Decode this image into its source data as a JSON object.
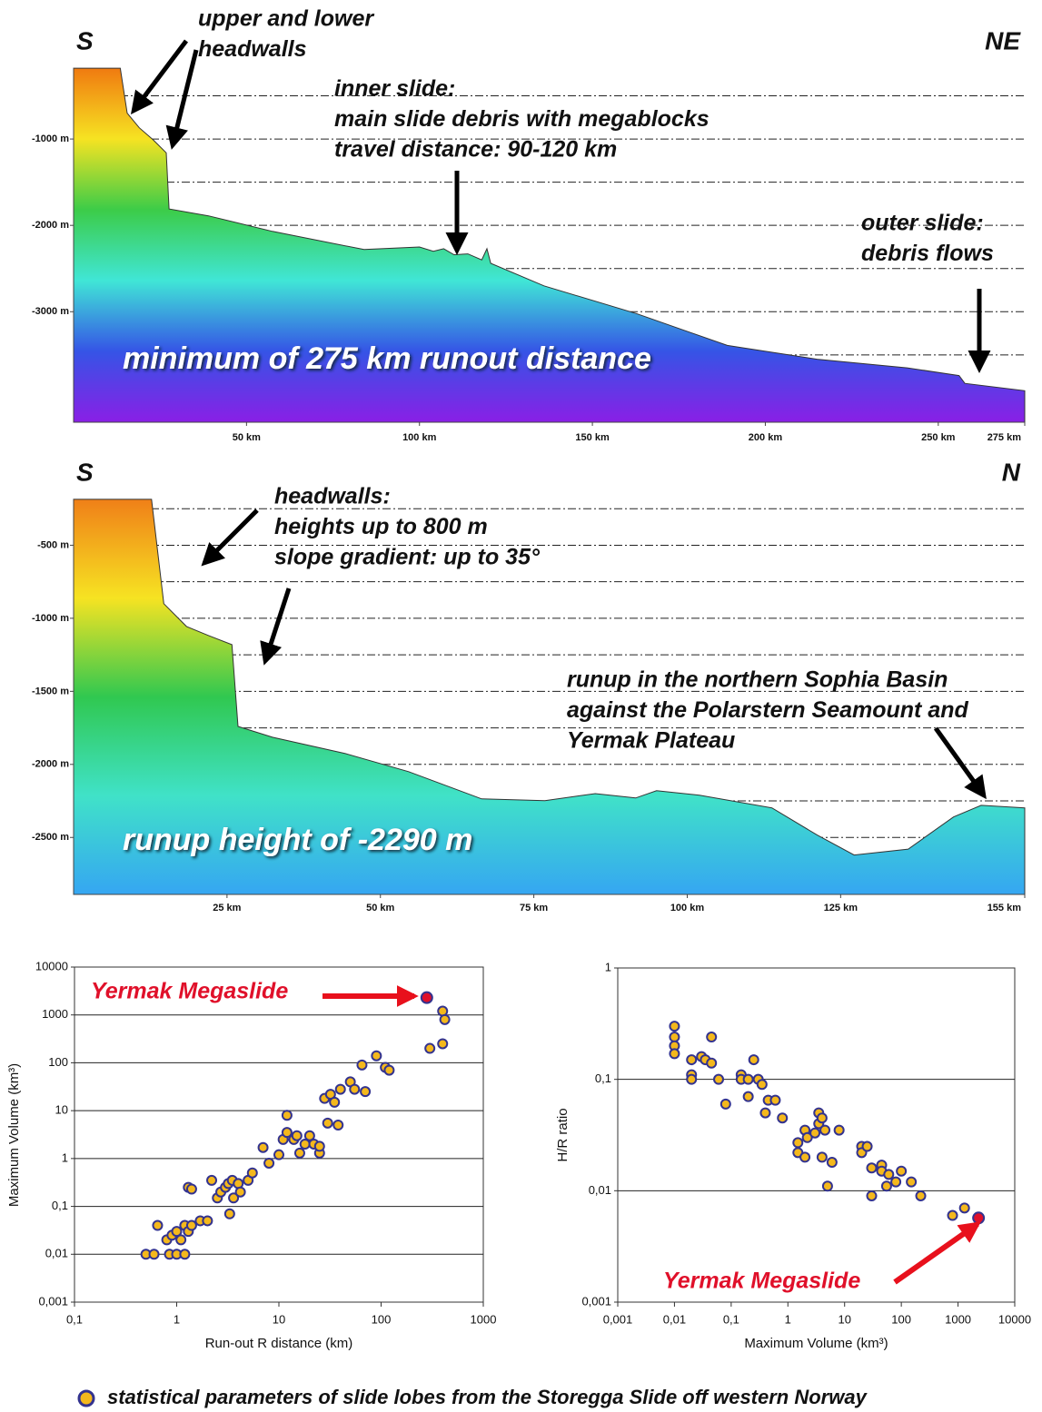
{
  "chart_data": [
    {
      "type": "area",
      "left_label": "S",
      "right_label": "NE",
      "x": [
        0,
        13.5,
        15.5,
        19,
        23,
        26.8,
        27.6,
        39,
        57.5,
        84,
        100,
        104,
        107,
        110,
        114,
        118,
        119.5,
        120.6,
        136,
        162.6,
        189,
        215,
        241,
        256,
        257.7,
        275
      ],
      "values": [
        -180,
        -180,
        -700,
        -870,
        -1010,
        -1160,
        -1810,
        -1890,
        -2070,
        -2280,
        -2250,
        -2300,
        -2270,
        -2340,
        -2330,
        -2400,
        -2270,
        -2440,
        -2700,
        -3020,
        -3390,
        -3550,
        -3650,
        -3740,
        -3830,
        -3915
      ],
      "xlim": [
        0,
        275
      ],
      "ylim": [
        -4280,
        0
      ],
      "xticks": [
        {
          "value": 50,
          "label": "50 km"
        },
        {
          "value": 100,
          "label": "100 km"
        },
        {
          "value": 150,
          "label": "150 km"
        },
        {
          "value": 200,
          "label": "200 km"
        },
        {
          "value": 250,
          "label": "250 km"
        },
        {
          "value": 275,
          "label": "275 km"
        }
      ],
      "yticks": [
        {
          "value": -1000,
          "label": "-1000 m"
        },
        {
          "value": -2000,
          "label": "-2000 m"
        },
        {
          "value": -3000,
          "label": "-3000 m"
        }
      ],
      "yminor": [
        -500,
        -1500,
        -2500,
        -3500
      ],
      "grid": true,
      "gradient": [
        "#f07a10",
        "#f6e322",
        "#3ccc48",
        "#40e6d6",
        "#3554e6",
        "#8a1fe6"
      ],
      "annotations": [
        {
          "lines": [
            "upper and lower",
            "headwalls"
          ]
        },
        {
          "lines": [
            "inner slide:",
            "main slide debris with megablocks",
            "travel distance: 90-120 km"
          ]
        },
        {
          "lines": [
            "outer slide:",
            "debris flows"
          ]
        },
        {
          "lines": [
            "minimum of 275 km runout distance"
          ]
        }
      ]
    },
    {
      "type": "area",
      "left_label": "S",
      "right_label": "N",
      "x": [
        0,
        12.7,
        14.7,
        18.4,
        22,
        25.8,
        26.8,
        32.4,
        44.3,
        54.6,
        66.5,
        76.8,
        85,
        91.6,
        95,
        102,
        113.8,
        121.2,
        127.2,
        136,
        143.4,
        147.9,
        155
      ],
      "values": [
        -186,
        -186,
        -900,
        -1056,
        -1118,
        -1180,
        -1740,
        -1814,
        -1926,
        -2050,
        -2236,
        -2248,
        -2200,
        -2230,
        -2180,
        -2211,
        -2298,
        -2484,
        -2620,
        -2580,
        -2360,
        -2280,
        -2298
      ],
      "xlim": [
        0,
        155
      ],
      "ylim": [
        -2890,
        0
      ],
      "xticks": [
        {
          "value": 25,
          "label": "25 km"
        },
        {
          "value": 50,
          "label": "50 km"
        },
        {
          "value": 75,
          "label": "75 km"
        },
        {
          "value": 100,
          "label": "100 km"
        },
        {
          "value": 125,
          "label": "125 km"
        },
        {
          "value": 155,
          "label": "155 km"
        }
      ],
      "yticks": [
        {
          "value": -500,
          "label": "-500 m"
        },
        {
          "value": -1000,
          "label": "-1000 m"
        },
        {
          "value": -1500,
          "label": "-1500 m"
        },
        {
          "value": -2000,
          "label": "-2000 m"
        },
        {
          "value": -2500,
          "label": "-2500 m"
        }
      ],
      "yminor": [
        -250,
        -750,
        -1250,
        -1750,
        -2250
      ],
      "grid": true,
      "gradient": [
        "#f08018",
        "#f6e322",
        "#30c850",
        "#40e2c8",
        "#35a6f2"
      ],
      "annotations": [
        {
          "lines": [
            "headwalls:",
            "heights up to 800 m",
            "slope gradient: up to 35°"
          ]
        },
        {
          "lines": [
            "runup in the northern Sophia Basin",
            "against the Polarstern Seamount and",
            "Yermak Plateau"
          ]
        },
        {
          "lines": [
            "runup height of -2290 m"
          ]
        }
      ]
    },
    {
      "type": "scatter",
      "xlabel": "Run-out R distance (km)",
      "ylabel": "Maximum Volume (km³)",
      "xscale": "log",
      "yscale": "log",
      "xlim": [
        0.1,
        1000
      ],
      "ylim": [
        0.001,
        10000
      ],
      "grid": true,
      "xticks": [
        {
          "value": 0.1,
          "label": "0,1"
        },
        1,
        10,
        100,
        1000
      ],
      "yticks": [
        {
          "value": 0.001,
          "label": "0,001"
        },
        {
          "value": 0.01,
          "label": "0,01"
        },
        {
          "value": 0.1,
          "label": "0,1"
        },
        1,
        10,
        100,
        1000,
        10000
      ],
      "series": [
        {
          "name": "statistical parameters of slide lobes from the Storegga Slide off western Norway",
          "color": "#f4b81c",
          "edge": "#33338f",
          "x": [
            0.5,
            0.6,
            0.65,
            0.8,
            0.85,
            0.9,
            1,
            1,
            1.1,
            1.2,
            1.2,
            1.3,
            1.4,
            1.3,
            1.4,
            1.7,
            2,
            2.2,
            2.5,
            2.7,
            3,
            3.2,
            3.3,
            3.5,
            3.6,
            4,
            4.2,
            5,
            5.5,
            7,
            8,
            10,
            11,
            12,
            12,
            14,
            15,
            16,
            18,
            20,
            22,
            25,
            25,
            28,
            30,
            32,
            35,
            38,
            40,
            50,
            55,
            65,
            70,
            90,
            110,
            120,
            300,
            400,
            400,
            420
          ],
          "values": [
            0.01,
            0.01,
            0.04,
            0.02,
            0.01,
            0.025,
            0.01,
            0.03,
            0.02,
            0.01,
            0.04,
            0.03,
            0.04,
            0.25,
            0.23,
            0.05,
            0.05,
            0.35,
            0.15,
            0.2,
            0.25,
            0.3,
            0.07,
            0.35,
            0.15,
            0.3,
            0.2,
            0.35,
            0.5,
            1.7,
            0.8,
            1.2,
            2.5,
            8,
            3.5,
            2.5,
            3,
            1.3,
            2,
            3,
            2,
            1.3,
            1.8,
            18,
            5.5,
            22,
            15,
            5,
            28,
            40,
            28,
            90,
            25,
            140,
            80,
            70,
            200,
            250,
            1200,
            800
          ]
        },
        {
          "name": "Yermak Megaslide",
          "color": "#e0102a",
          "edge": "#33338f",
          "x": [
            280
          ],
          "values": [
            2300
          ]
        }
      ]
    },
    {
      "type": "scatter",
      "xlabel": "Maximum Volume (km³)",
      "ylabel": "H/R ratio",
      "xscale": "log",
      "yscale": "log",
      "xlim": [
        0.001,
        10000
      ],
      "ylim": [
        0.001,
        1
      ],
      "grid": true,
      "xticks": [
        {
          "value": 0.001,
          "label": "0,001"
        },
        {
          "value": 0.01,
          "label": "0,01"
        },
        {
          "value": 0.1,
          "label": "0,1"
        },
        1,
        10,
        100,
        1000,
        10000
      ],
      "yticks": [
        {
          "value": 0.001,
          "label": "0,001"
        },
        {
          "value": 0.01,
          "label": "0,01"
        },
        {
          "value": 0.1,
          "label": "0,1"
        },
        1
      ],
      "series": [
        {
          "color": "#f4b81c",
          "edge": "#33338f",
          "x": [
            0.01,
            0.01,
            0.01,
            0.01,
            0.02,
            0.02,
            0.02,
            0.03,
            0.035,
            0.045,
            0.045,
            0.06,
            0.08,
            0.15,
            0.15,
            0.2,
            0.2,
            0.25,
            0.3,
            0.35,
            0.4,
            0.45,
            0.6,
            0.8,
            1.5,
            1.5,
            2,
            2,
            2.2,
            3,
            3.5,
            3.5,
            4,
            4,
            4.5,
            5,
            6,
            8,
            20,
            20,
            25,
            30,
            30,
            45,
            45,
            55,
            60,
            80,
            100,
            150,
            220,
            800,
            1300
          ],
          "values": [
            0.3,
            0.24,
            0.2,
            0.17,
            0.15,
            0.11,
            0.1,
            0.16,
            0.15,
            0.24,
            0.14,
            0.1,
            0.06,
            0.11,
            0.1,
            0.1,
            0.07,
            0.15,
            0.1,
            0.09,
            0.05,
            0.065,
            0.065,
            0.045,
            0.027,
            0.022,
            0.035,
            0.02,
            0.03,
            0.033,
            0.05,
            0.04,
            0.045,
            0.02,
            0.035,
            0.011,
            0.018,
            0.035,
            0.025,
            0.022,
            0.025,
            0.016,
            0.009,
            0.017,
            0.015,
            0.011,
            0.014,
            0.012,
            0.015,
            0.012,
            0.009,
            0.006,
            0.007
          ]
        },
        {
          "name": "Yermak Megaslide",
          "color": "#e0102a",
          "edge": "#33338f",
          "x": [
            2300
          ],
          "values": [
            0.0057
          ]
        }
      ]
    }
  ]
}
